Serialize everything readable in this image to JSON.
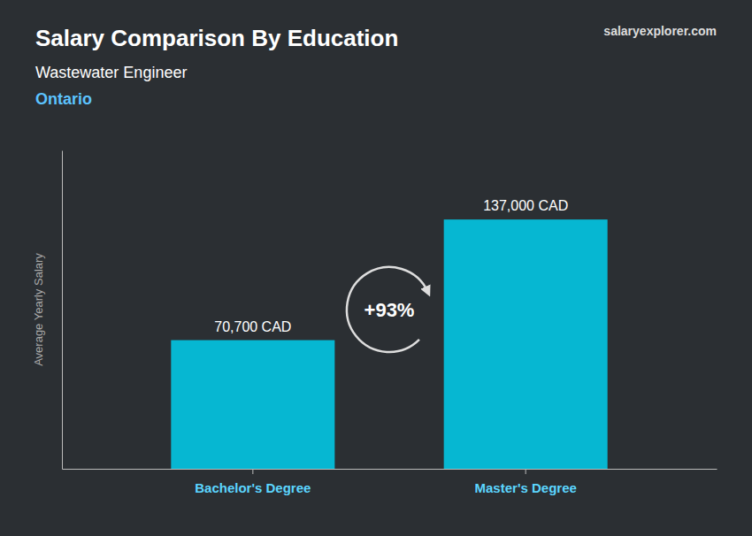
{
  "chart_data": {
    "type": "bar",
    "title": "Salary Comparison By Education",
    "subtitle": "Wastewater Engineer",
    "annotations": [
      "Ontario",
      "+93%",
      "salaryexplorer.com"
    ],
    "ylabel": "Average Yearly Salary",
    "categories": [
      "Bachelor's Degree",
      "Master's Degree"
    ],
    "values": [
      70700,
      137000
    ],
    "value_labels": [
      "70,700 CAD",
      "137,000 CAD"
    ],
    "data_labels": true,
    "color": "#00cfee",
    "ylim": [
      0,
      175000
    ],
    "tick_labels": "x"
  }
}
